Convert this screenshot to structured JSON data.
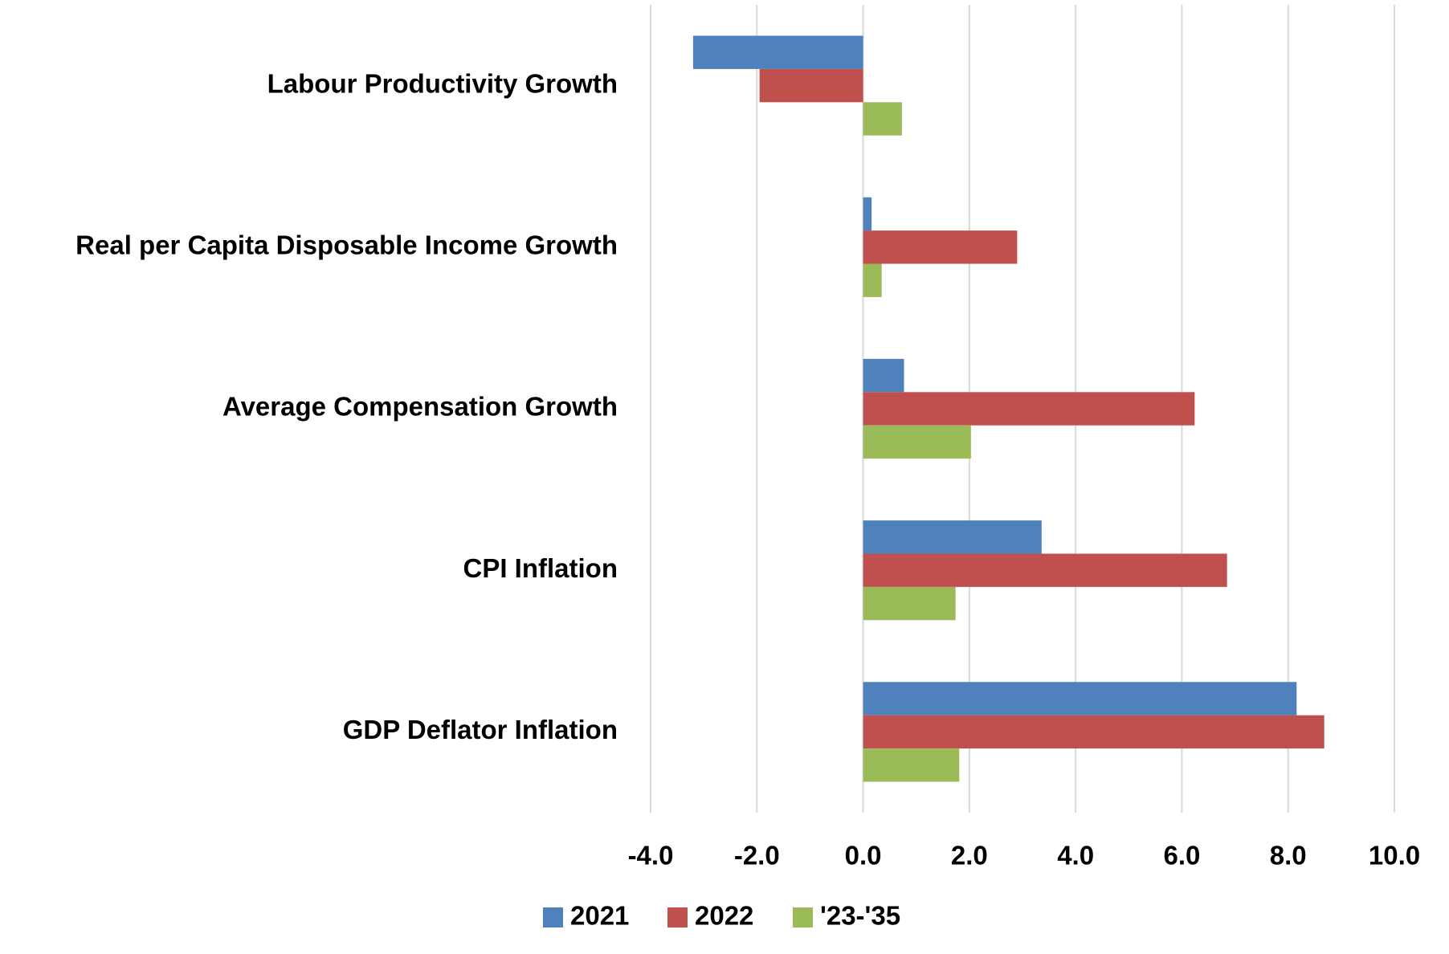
{
  "chart_data": {
    "type": "bar",
    "orientation": "horizontal",
    "categories": [
      "Labour Productivity Growth",
      "Real per Capita Disposable Income Growth",
      "Average Compensation Growth",
      "CPI Inflation",
      "GDP Deflator Inflation"
    ],
    "series": [
      {
        "name": "2021",
        "color": "#4f81bd",
        "values": [
          -3.2,
          0.16,
          0.77,
          3.36,
          8.16
        ]
      },
      {
        "name": "2022",
        "color": "#c0504d",
        "values": [
          -1.95,
          2.9,
          6.24,
          6.85,
          8.68
        ]
      },
      {
        "name": "'23-'35",
        "color": "#9bbb59",
        "values": [
          0.73,
          0.35,
          2.03,
          1.74,
          1.81
        ]
      }
    ],
    "xlim": [
      -4,
      10
    ],
    "xticks": [
      {
        "value": -4,
        "label": "-4.0"
      },
      {
        "value": -2,
        "label": "-2.0"
      },
      {
        "value": 0,
        "label": "0.0"
      },
      {
        "value": 2,
        "label": "2.0"
      },
      {
        "value": 4,
        "label": "4.0"
      },
      {
        "value": 6,
        "label": "6.0"
      },
      {
        "value": 8,
        "label": "8.0"
      },
      {
        "value": 10,
        "label": "10.0"
      }
    ],
    "grid": true,
    "legend": "bottom"
  }
}
